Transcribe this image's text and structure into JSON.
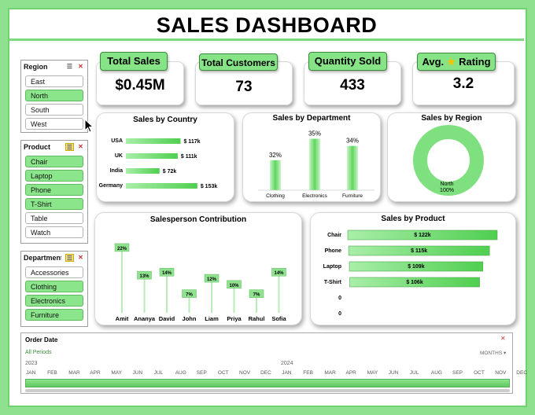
{
  "title": "SALES DASHBOARD",
  "slicers": {
    "region": {
      "label": "Region",
      "items": [
        {
          "label": "East",
          "selected": false
        },
        {
          "label": "North",
          "selected": true
        },
        {
          "label": "South",
          "selected": false
        },
        {
          "label": "West",
          "selected": false
        }
      ]
    },
    "product": {
      "label": "Product",
      "items": [
        {
          "label": "Chair",
          "selected": true
        },
        {
          "label": "Laptop",
          "selected": true
        },
        {
          "label": "Phone",
          "selected": true
        },
        {
          "label": "T-Shirt",
          "selected": true
        },
        {
          "label": "Table",
          "selected": false
        },
        {
          "label": "Watch",
          "selected": false
        }
      ]
    },
    "department": {
      "label": "Department",
      "items": [
        {
          "label": "Accessories",
          "selected": false
        },
        {
          "label": "Clothing",
          "selected": true
        },
        {
          "label": "Electronics",
          "selected": true
        },
        {
          "label": "Furniture",
          "selected": true
        }
      ]
    }
  },
  "kpis": {
    "total_sales": {
      "label": "Total Sales",
      "value": "$0.45M"
    },
    "total_customers": {
      "label": "Total Customers",
      "value": "73"
    },
    "quantity_sold": {
      "label": "Quantity Sold",
      "value": "433"
    },
    "avg_rating": {
      "label_pre": "Avg.",
      "label_post": "Rating",
      "value": "3.2",
      "icon": "star-icon"
    }
  },
  "chart_data": [
    {
      "type": "bar",
      "orientation": "horizontal",
      "title": "Sales by Country",
      "categories": [
        "USA",
        "UK",
        "India",
        "Germany"
      ],
      "values": [
        117,
        111,
        72,
        153
      ],
      "labels": [
        "$ 117k",
        "$ 111k",
        "$ 72k",
        "$ 153k"
      ]
    },
    {
      "type": "bar",
      "title": "Sales by Department",
      "categories": [
        "Clothing",
        "Electronics",
        "Furniture"
      ],
      "values": [
        32,
        35,
        34
      ],
      "labels": [
        "32%",
        "35%",
        "34%"
      ]
    },
    {
      "type": "pie",
      "donut": true,
      "title": "Sales by Region",
      "categories": [
        "North"
      ],
      "values": [
        100
      ],
      "labels": [
        "North",
        "100%"
      ]
    },
    {
      "type": "bar",
      "title": "Salesperson Contribution",
      "categories": [
        "Amit",
        "Ananya",
        "David",
        "John",
        "Liam",
        "Priya",
        "Rahul",
        "Sofia"
      ],
      "values": [
        22,
        13,
        14,
        7,
        12,
        10,
        7,
        14
      ],
      "labels": [
        "22%",
        "13%",
        "14%",
        "7%",
        "12%",
        "10%",
        "7%",
        "14%"
      ]
    },
    {
      "type": "bar",
      "orientation": "horizontal",
      "title": "Sales by Product",
      "categories": [
        "Chair",
        "Phone",
        "Laptop",
        "T-Shirt",
        "0",
        "0"
      ],
      "values": [
        122,
        115,
        109,
        106,
        0,
        0
      ],
      "labels": [
        "$ 122k",
        "$ 115k",
        "$ 109k",
        "$ 106k",
        "",
        ""
      ]
    }
  ],
  "timeline": {
    "label": "Order Date",
    "periods": "All Periods",
    "unit": "MONTHS",
    "years": [
      "2023",
      "2024"
    ],
    "months": [
      "JAN",
      "FEB",
      "MAR",
      "APR",
      "MAY",
      "JUN",
      "JUL",
      "AUG",
      "SEP",
      "OCT",
      "NOV",
      "DEC",
      "JAN",
      "FEB",
      "MAR",
      "APR",
      "MAY",
      "JUN",
      "JUL",
      "AUG",
      "SEP",
      "OCT",
      "NOV",
      "DEC"
    ]
  },
  "colors": {
    "accent": "#86e386",
    "bar": "#7ee07e",
    "border": "#6fd36f"
  }
}
